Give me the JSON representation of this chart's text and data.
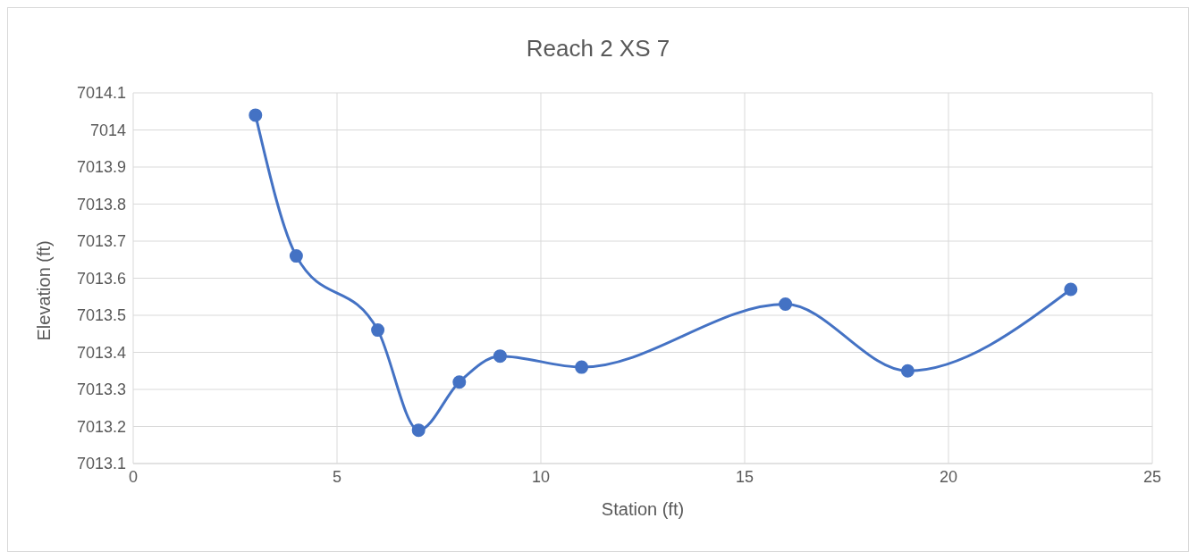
{
  "chart_data": {
    "type": "line",
    "title": "Reach 2 XS 7",
    "xlabel": "Station (ft)",
    "ylabel": "Elevation (ft)",
    "x": [
      3,
      4,
      6,
      7,
      8,
      9,
      11,
      16,
      19,
      23
    ],
    "series": [
      {
        "color": "#4472c4",
        "values": [
          7014.04,
          7013.66,
          7013.46,
          7013.19,
          7013.32,
          7013.39,
          7013.36,
          7013.53,
          7013.35,
          7013.57
        ]
      }
    ],
    "xlim": [
      0,
      25
    ],
    "xticks": [
      0,
      5,
      10,
      15,
      20,
      25
    ],
    "ylim": [
      7013.1,
      7014.1
    ],
    "yticks": [
      7013.1,
      7013.2,
      7013.3,
      7013.4,
      7013.5,
      7013.6,
      7013.7,
      7013.8,
      7013.9,
      7014,
      7014.1
    ],
    "grid": true,
    "marker": "circle",
    "line_style": "solid"
  }
}
